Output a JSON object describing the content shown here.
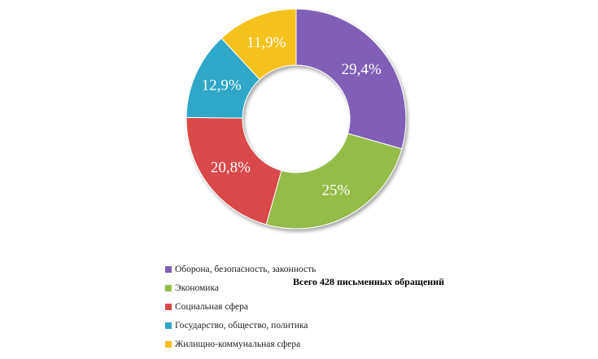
{
  "chart_data": {
    "type": "pie",
    "donut": true,
    "categories": [
      "Оборона, безопасность, законность",
      "Экономика",
      "Социальная сфера",
      "Государство, общество, политика",
      "Жилищно-коммунальная сфера"
    ],
    "values": [
      29.4,
      25,
      20.8,
      12.9,
      11.9
    ],
    "data_labels": [
      "29,4%",
      "25%",
      "20,8%",
      "12,9%",
      "11,9%"
    ],
    "colors": [
      "#8060b6",
      "#95bb4a",
      "#d94848",
      "#2fa7c8",
      "#f5c21c"
    ],
    "legend_placement": "bottom-left",
    "annotation": "Всего 428 письменных обращений"
  }
}
